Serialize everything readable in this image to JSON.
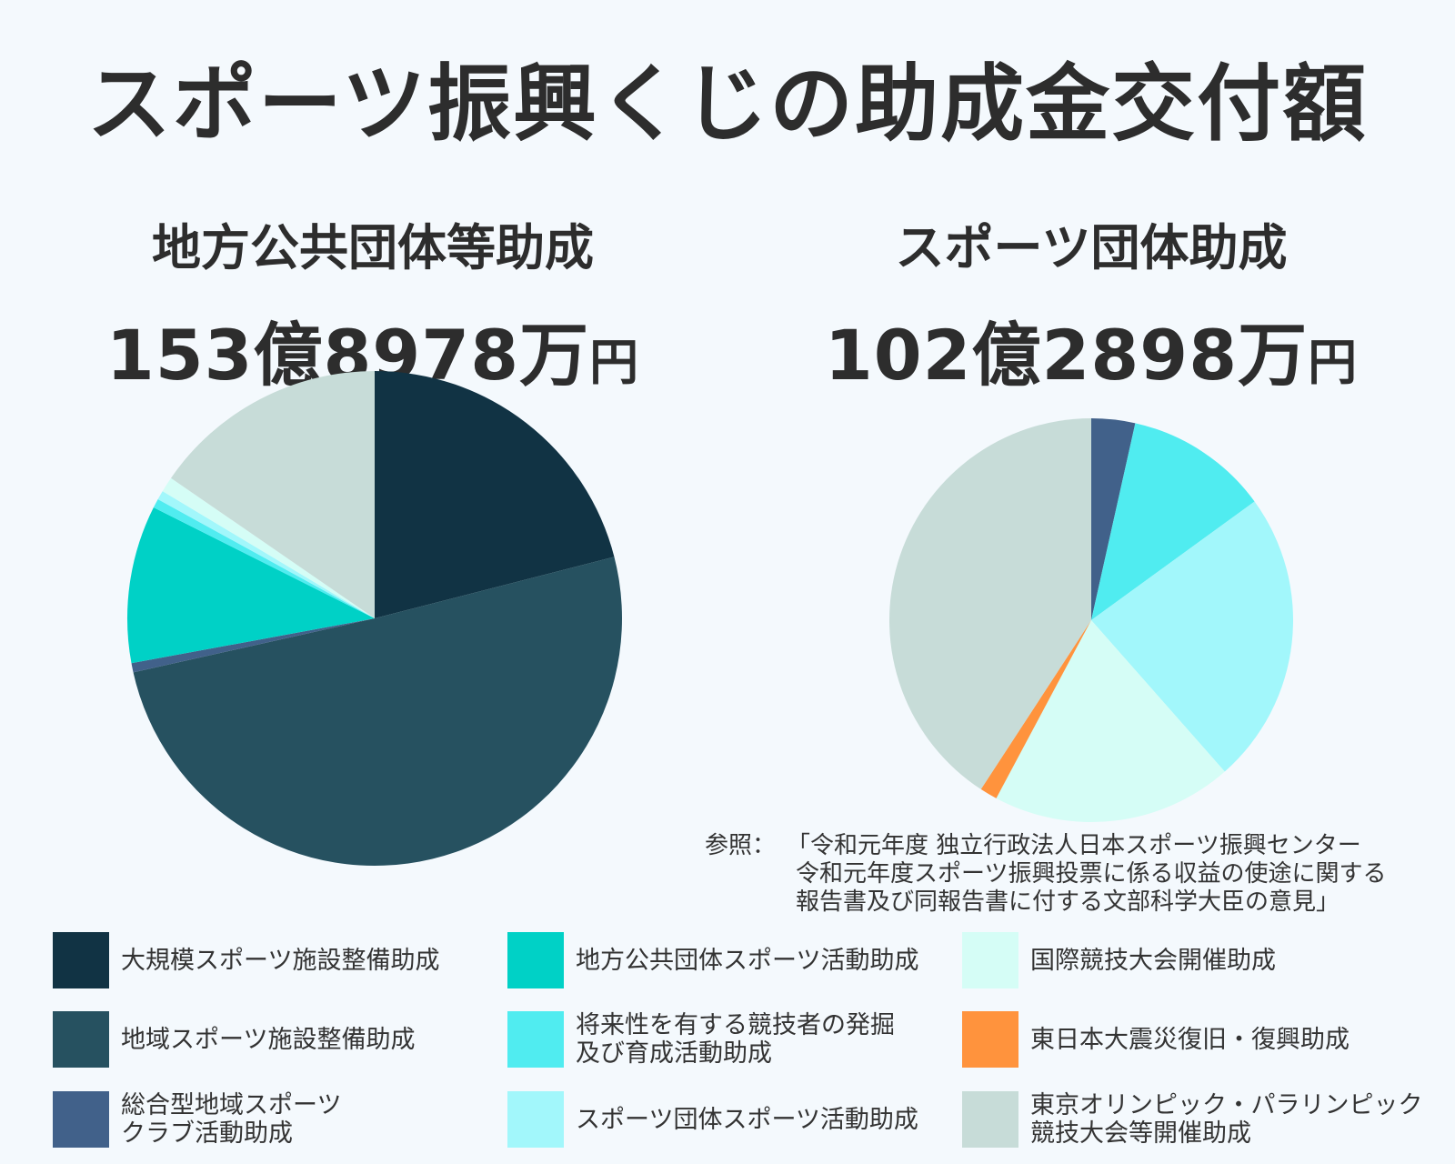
{
  "title": "スポーツ振興くじの助成金交付額",
  "charts": [
    {
      "name": "地方公共団体等助成",
      "amount_main": "153億8978万",
      "amount_unit": "円"
    },
    {
      "name": "スポーツ団体助成",
      "amount_main": "102億2898万",
      "amount_unit": "円"
    }
  ],
  "source": {
    "label": "参照：",
    "lines": [
      "「令和元年度 独立行政法人日本スポーツ振興センター",
      "令和元年度スポーツ振興投票に係る収益の使途に関する",
      "報告書及び同報告書に付する文部科学大臣の意見」"
    ]
  },
  "legend": [
    {
      "label": "大規模スポーツ施設整備助成",
      "color": "#113344"
    },
    {
      "label": "地域スポーツ施設整備助成",
      "color": "#265160"
    },
    {
      "label": "総合型地域スポーツ\nクラブ活動助成",
      "color": "#41618a"
    },
    {
      "label": "地方公共団体スポーツ活動助成",
      "color": "#00d1c6"
    },
    {
      "label": "将来性を有する競技者の発掘\n及び育成活動助成",
      "color": "#50ecf0"
    },
    {
      "label": "スポーツ団体スポーツ活動助成",
      "color": "#a2f7fb"
    },
    {
      "label": "国際競技大会開催助成",
      "color": "#d5fdf6"
    },
    {
      "label": "東日本大震災復旧・復興助成",
      "color": "#ff933d"
    },
    {
      "label": "東京オリンピック・パラリンピック\n競技大会等開催助成",
      "color": "#c7dcd8"
    }
  ],
  "chart_data": [
    {
      "type": "pie",
      "title": "地方公共団体等助成",
      "slices": [
        {
          "label": "大規模スポーツ施設整備助成",
          "value": 21.0,
          "color": "#113344"
        },
        {
          "label": "地域スポーツ施設整備助成",
          "value": 50.5,
          "color": "#265160"
        },
        {
          "label": "総合型地域スポーツクラブ活動助成",
          "value": 0.6,
          "color": "#41618a"
        },
        {
          "label": "地方公共団体スポーツ活動助成",
          "value": 10.3,
          "color": "#00d1c6"
        },
        {
          "label": "将来性を有する競技者の発掘及び育成活動助成",
          "value": 0.6,
          "color": "#50ecf0"
        },
        {
          "label": "スポーツ団体スポーツ活動助成",
          "value": 0.6,
          "color": "#a2f7fb"
        },
        {
          "label": "国際競技大会開催助成",
          "value": 1.0,
          "color": "#d5fdf6"
        },
        {
          "label": "東京オリンピック・パラリンピック競技大会等開催助成",
          "value": 15.4,
          "color": "#c7dcd8"
        }
      ]
    },
    {
      "type": "pie",
      "title": "スポーツ団体助成",
      "slices": [
        {
          "label": "総合型地域スポーツクラブ活動助成",
          "value": 3.5,
          "color": "#41618a"
        },
        {
          "label": "将来性を有する競技者の発掘及び育成活動助成",
          "value": 11.5,
          "color": "#50ecf0"
        },
        {
          "label": "スポーツ団体スポーツ活動助成",
          "value": 23.5,
          "color": "#a2f7fb"
        },
        {
          "label": "国際競技大会開催助成",
          "value": 19.3,
          "color": "#d5fdf6"
        },
        {
          "label": "東日本大震災復旧・復興助成",
          "value": 1.4,
          "color": "#ff933d"
        },
        {
          "label": "東京オリンピック・パラリンピック競技大会等開催助成",
          "value": 40.8,
          "color": "#c7dcd8"
        }
      ]
    }
  ]
}
